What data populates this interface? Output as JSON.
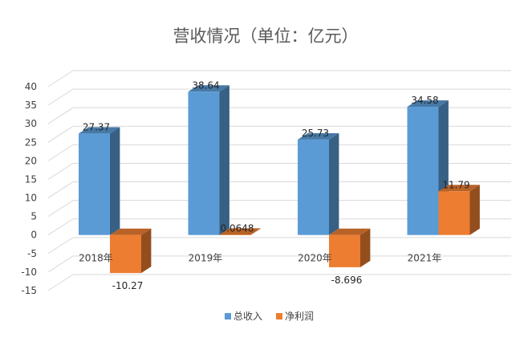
{
  "chart_data": {
    "type": "bar",
    "title": "营收情况（单位：亿元）",
    "xlabel": "",
    "ylabel": "",
    "categories": [
      "2018年",
      "2019年",
      "2020年",
      "2021年"
    ],
    "series": [
      {
        "name": "总收入",
        "values": [
          27.37,
          38.64,
          25.73,
          34.58
        ],
        "labels": [
          "27.37",
          "38.64",
          "25.73",
          "34.58"
        ],
        "color": "#5B9BD5"
      },
      {
        "name": "净利润",
        "values": [
          -10.27,
          0.0648,
          -8.696,
          11.79
        ],
        "labels": [
          "-10.27",
          "0.0648",
          "-8.696",
          "11.79"
        ],
        "color": "#ED7D31"
      }
    ],
    "ylim": [
      -15,
      40
    ],
    "yticks": [
      40,
      35,
      30,
      25,
      20,
      15,
      10,
      5,
      0,
      -5,
      -10,
      -15
    ],
    "grid": true,
    "legend": "bottom",
    "style": "3d-column"
  }
}
